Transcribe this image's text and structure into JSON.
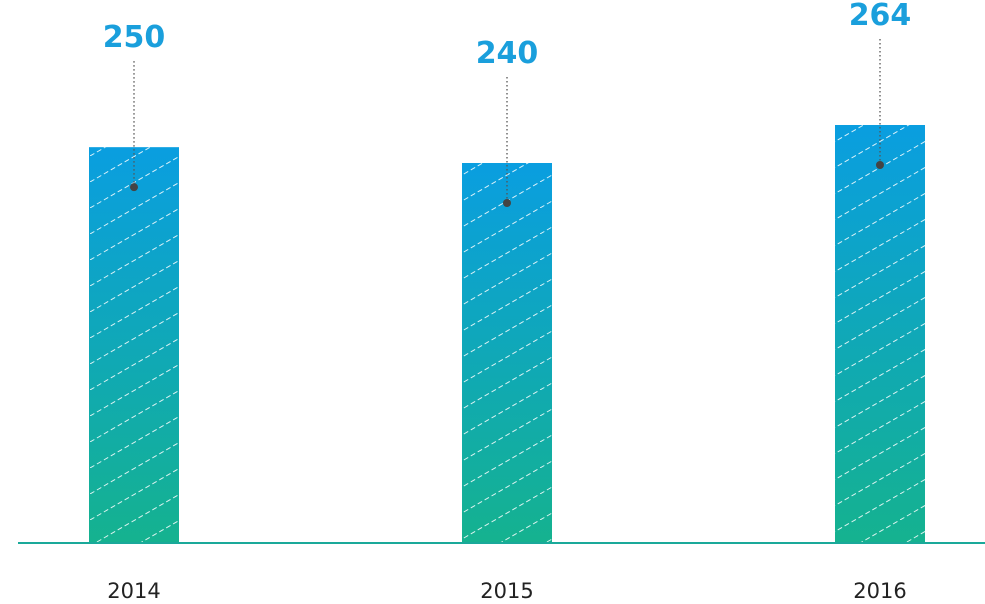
{
  "colors": {
    "bar_top": "#0a9ee0",
    "bar_bottom": "#15b28f",
    "value_label": "#1a9fdc",
    "axis_line": "#1aa99a",
    "leader": "#555555"
  },
  "chart_data": {
    "type": "bar",
    "categories": [
      "2014",
      "2015",
      "2016"
    ],
    "values": [
      250,
      240,
      264
    ],
    "data_labels": [
      "250",
      "240",
      "264"
    ],
    "title": "",
    "xlabel": "",
    "ylabel": "",
    "ylim": [
      0,
      264
    ],
    "grid": false,
    "legend": "none"
  }
}
